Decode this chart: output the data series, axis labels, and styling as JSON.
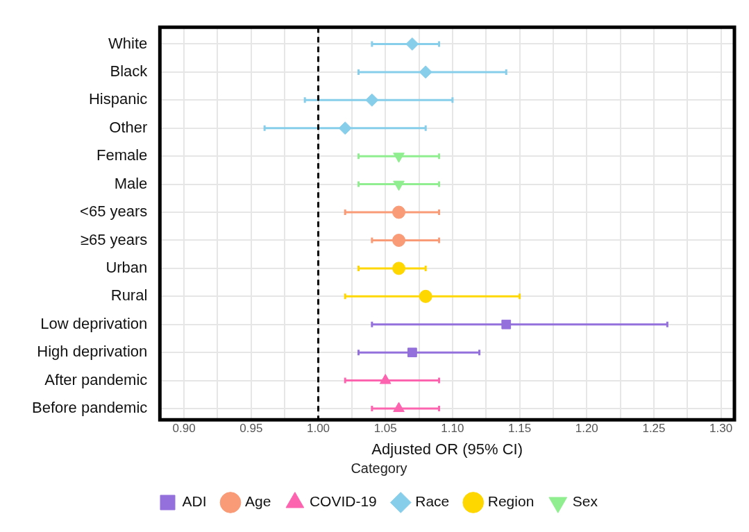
{
  "chart_data": {
    "type": "scatter",
    "orientation": "horizontal",
    "xlabel": "Adjusted OR (95% CI)",
    "legend_title": "Category",
    "legend": "bottom",
    "grid": true,
    "categories": [
      "White",
      "Black",
      "Hispanic",
      "Other",
      "Female",
      "Male",
      "<65 years",
      "≥65 years",
      "Urban",
      "Rural",
      "Low deprivation",
      "High deprivation",
      "After pandemic",
      "Before pandemic"
    ],
    "xlim": [
      0.882,
      1.31
    ],
    "xticks": [
      {
        "value": 0.9,
        "label": "0.90"
      },
      {
        "value": 0.925,
        "label": null
      },
      0.95,
      {
        "value": 0.975,
        "label": null
      },
      {
        "value": 1,
        "label": "1.00"
      },
      {
        "value": 1.025,
        "label": null
      },
      1.05,
      {
        "value": 1.075,
        "label": null
      },
      {
        "value": 1.1,
        "label": "1.10"
      },
      {
        "value": 1.125,
        "label": null
      },
      1.15,
      {
        "value": 1.175,
        "label": null
      },
      {
        "value": 1.2,
        "label": "1.20"
      },
      {
        "value": 1.225,
        "label": null
      },
      1.25,
      {
        "value": 1.275,
        "label": null
      },
      {
        "value": 1.3,
        "label": "1.30"
      }
    ],
    "ref_lines": [
      {
        "axis": "x",
        "value": 1,
        "label": null,
        "color": "#000000",
        "line_style": "dashed"
      }
    ],
    "series": [
      {
        "name": "ADI",
        "color": "#9370db",
        "marker": "square",
        "values": [
          null,
          null,
          null,
          null,
          null,
          null,
          null,
          null,
          null,
          null,
          1.14,
          1.07,
          null,
          null
        ],
        "errors": [
          null,
          null,
          null,
          null,
          null,
          null,
          null,
          null,
          null,
          null,
          [
            1.04,
            1.26
          ],
          [
            1.03,
            1.12
          ],
          null,
          null
        ]
      },
      {
        "name": "Age",
        "color": "#f99b77",
        "marker": "circle",
        "values": [
          null,
          null,
          null,
          null,
          null,
          null,
          1.06,
          1.06,
          null,
          null,
          null,
          null,
          null,
          null
        ],
        "errors": [
          null,
          null,
          null,
          null,
          null,
          null,
          [
            1.02,
            1.09
          ],
          [
            1.04,
            1.09
          ],
          null,
          null,
          null,
          null,
          null,
          null
        ]
      },
      {
        "name": "COVID-19",
        "color": "#fc64b0",
        "marker": "triangle",
        "values": [
          null,
          null,
          null,
          null,
          null,
          null,
          null,
          null,
          null,
          null,
          null,
          null,
          1.05,
          1.06
        ],
        "errors": [
          null,
          null,
          null,
          null,
          null,
          null,
          null,
          null,
          null,
          null,
          null,
          null,
          [
            1.02,
            1.09
          ],
          [
            1.04,
            1.09
          ]
        ]
      },
      {
        "name": "Race",
        "color": "#87ceeb",
        "marker": "diamond",
        "values": [
          1.07,
          1.08,
          1.04,
          1.02,
          null,
          null,
          null,
          null,
          null,
          null,
          null,
          null,
          null,
          null
        ],
        "errors": [
          [
            1.04,
            1.09
          ],
          [
            1.03,
            1.14
          ],
          [
            0.99,
            1.1
          ],
          [
            0.96,
            1.08
          ],
          null,
          null,
          null,
          null,
          null,
          null,
          null,
          null,
          null,
          null
        ]
      },
      {
        "name": "Region",
        "color": "#ffd700",
        "marker": "circle",
        "values": [
          null,
          null,
          null,
          null,
          null,
          null,
          null,
          null,
          1.06,
          1.08,
          null,
          null,
          null,
          null
        ],
        "errors": [
          null,
          null,
          null,
          null,
          null,
          null,
          null,
          null,
          [
            1.03,
            1.08
          ],
          [
            1.02,
            1.15
          ],
          null,
          null,
          null,
          null
        ]
      },
      {
        "name": "Sex",
        "color": "#90ee90",
        "marker": "triangle-down",
        "values": [
          null,
          null,
          null,
          null,
          1.06,
          1.06,
          null,
          null,
          null,
          null,
          null,
          null,
          null,
          null
        ],
        "errors": [
          null,
          null,
          null,
          null,
          [
            1.03,
            1.09
          ],
          [
            1.03,
            1.09
          ],
          null,
          null,
          null,
          null,
          null,
          null,
          null,
          null
        ]
      }
    ]
  }
}
